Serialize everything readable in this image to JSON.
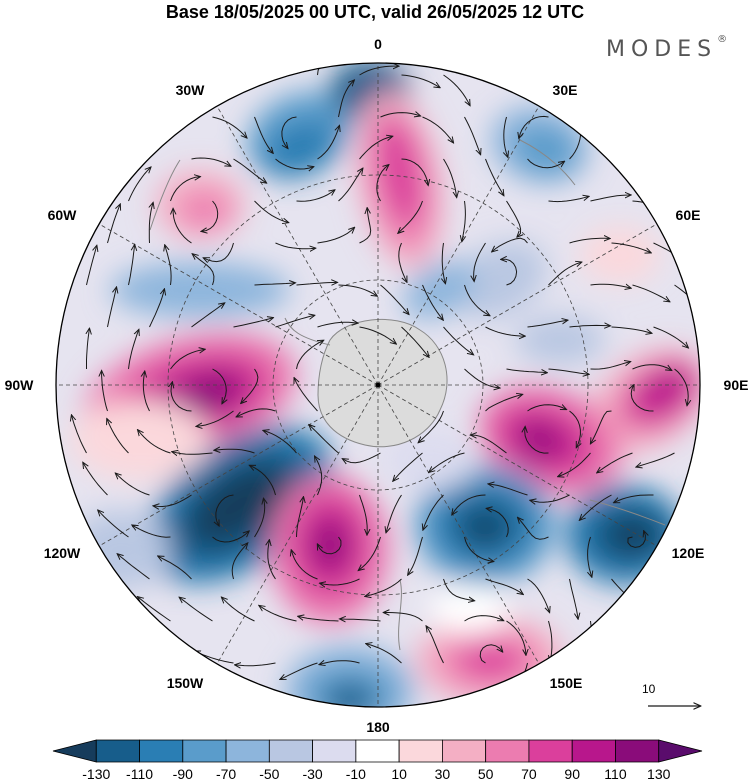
{
  "header": {
    "title": "Base 18/05/2025 00 UTC, valid 26/05/2025 12 UTC",
    "brand": "MODES",
    "brand_mark": "®"
  },
  "map": {
    "projection": "south-polar-stereographic",
    "longitude_labels": [
      {
        "id": "0",
        "text": "0"
      },
      {
        "id": "30E",
        "text": "30E"
      },
      {
        "id": "60E",
        "text": "60E"
      },
      {
        "id": "90E",
        "text": "90E"
      },
      {
        "id": "120E",
        "text": "120E"
      },
      {
        "id": "150E",
        "text": "150E"
      },
      {
        "id": "180",
        "text": "180"
      },
      {
        "id": "150W",
        "text": "150W"
      },
      {
        "id": "120W",
        "text": "120W"
      },
      {
        "id": "90W",
        "text": "90W"
      },
      {
        "id": "60W",
        "text": "60W"
      },
      {
        "id": "30W",
        "text": "30W"
      }
    ],
    "reference_vector": "10",
    "colors": {
      "land": "#dcdcdc",
      "coast": "#888888",
      "grid": "#444444",
      "streamline": "#1a1a1a"
    }
  },
  "colorbar": {
    "levels": [
      "-130",
      "-110",
      "-90",
      "-70",
      "-50",
      "-30",
      "-10",
      "10",
      "30",
      "50",
      "70",
      "90",
      "110",
      "130"
    ],
    "colors": [
      "#163c5c",
      "#175d8b",
      "#2a7eb4",
      "#5a9ccb",
      "#8db5dc",
      "#b9c7e2",
      "#dcdcef",
      "#ffffff",
      "#fbd8dc",
      "#f4afc4",
      "#ec7cb0",
      "#db3f9c",
      "#b8178c",
      "#8a0c7a",
      "#5a0c6c"
    ]
  }
}
